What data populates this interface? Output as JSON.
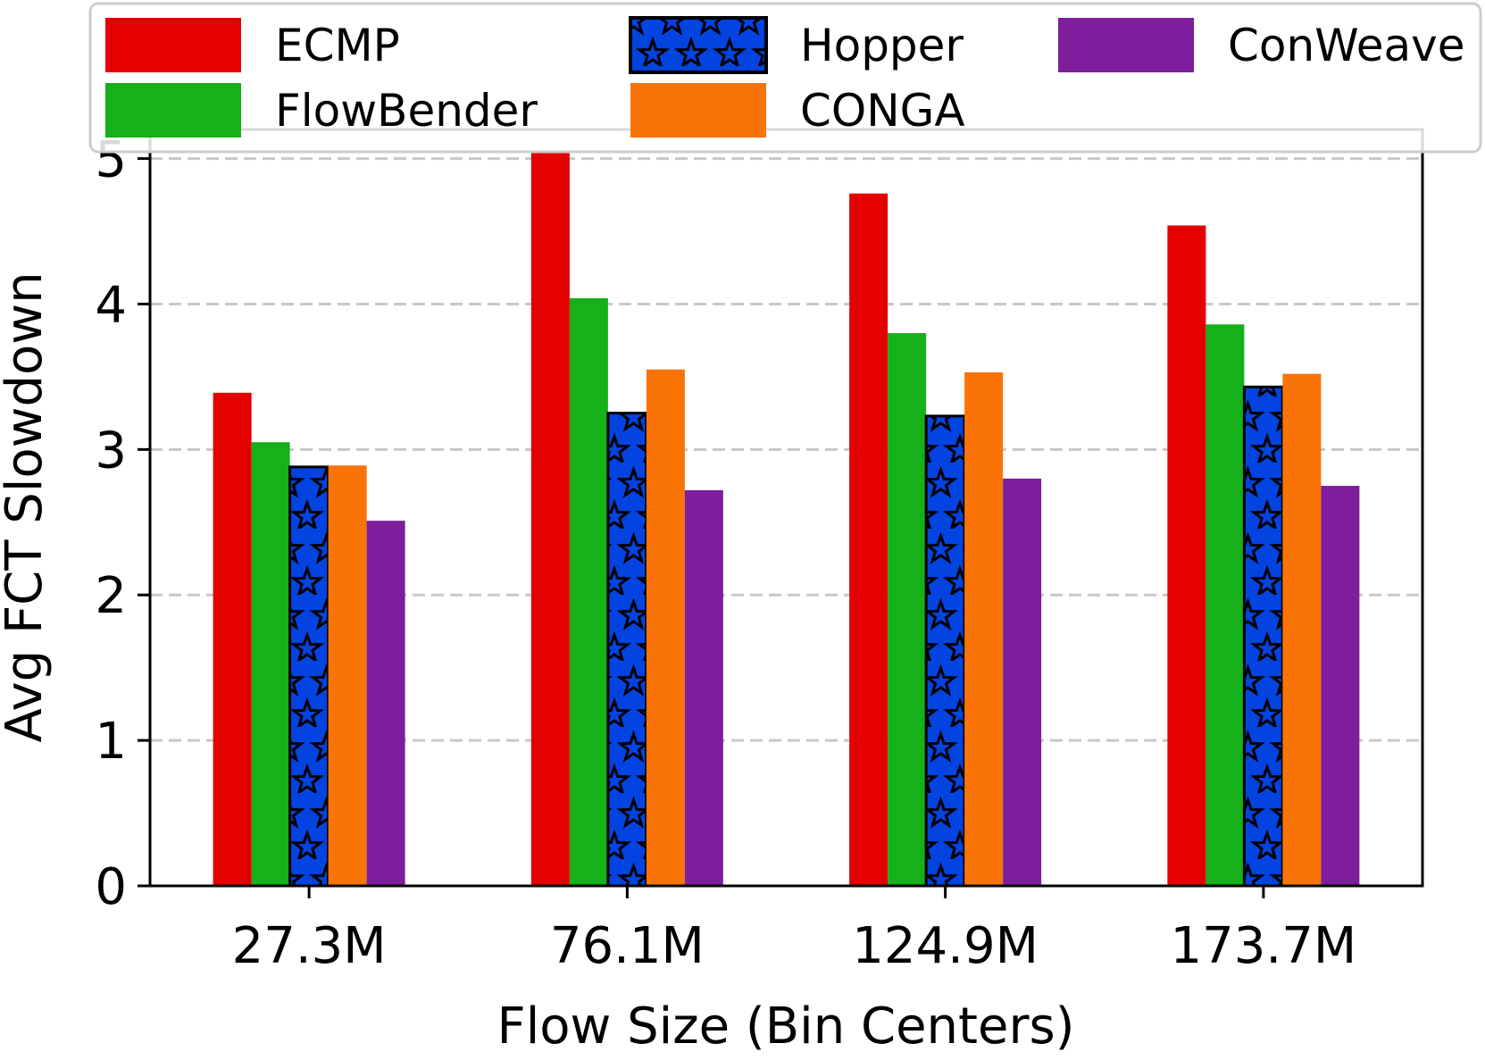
{
  "chart_data": {
    "type": "bar",
    "title": "",
    "xlabel": "Flow Size (Bin Centers)",
    "ylabel": "Avg FCT Slowdown",
    "categories": [
      "27.3M",
      "76.1M",
      "124.9M",
      "173.7M"
    ],
    "ylim": [
      0,
      5.2
    ],
    "yticks": [
      0,
      1,
      2,
      3,
      4,
      5
    ],
    "grid": "horizontal-dashed",
    "legend_position": "top",
    "series": [
      {
        "name": "ECMP",
        "color": "#e50000",
        "pattern": "none",
        "values": [
          3.39,
          5.05,
          4.76,
          4.54
        ]
      },
      {
        "name": "FlowBender",
        "color": "#15b01a",
        "pattern": "none",
        "values": [
          3.05,
          4.04,
          3.8,
          3.86
        ]
      },
      {
        "name": "Hopper",
        "color": "#0343df",
        "pattern": "stars",
        "values": [
          2.88,
          3.25,
          3.23,
          3.43
        ]
      },
      {
        "name": "CONGA",
        "color": "#f97306",
        "pattern": "none",
        "values": [
          2.89,
          3.55,
          3.53,
          3.52
        ]
      },
      {
        "name": "ConWeave",
        "color": "#7e1e9c",
        "pattern": "none",
        "values": [
          2.51,
          2.72,
          2.8,
          2.75
        ]
      }
    ]
  }
}
